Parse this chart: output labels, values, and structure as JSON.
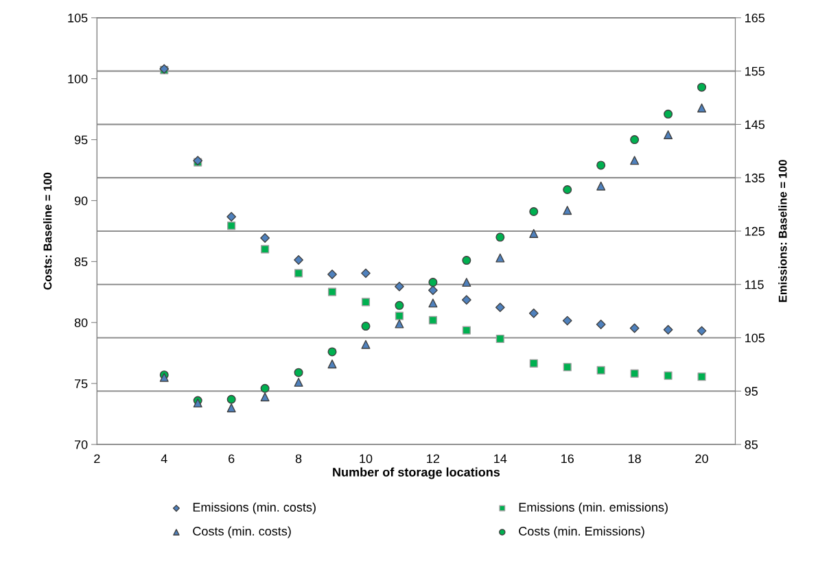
{
  "chart_data": {
    "type": "scatter",
    "xlabel": "Number of storage locations",
    "ylabel": "Costs: Baseline = 100",
    "y2label": "Emissions: Baseline = 100",
    "xlim": [
      2,
      21
    ],
    "xticks": [
      2,
      4,
      6,
      8,
      10,
      12,
      14,
      16,
      18,
      20
    ],
    "ylim": [
      70,
      105
    ],
    "yticks": [
      70,
      75,
      80,
      85,
      90,
      95,
      100,
      105
    ],
    "y2lim": [
      85,
      165
    ],
    "y2ticks": [
      85,
      95,
      105,
      115,
      125,
      135,
      145,
      155,
      165
    ],
    "grid": "y2",
    "legend": "bottom",
    "series": [
      {
        "name": "Emissions (min. costs)",
        "color": "#4f81bd",
        "marker": "diamond",
        "axis": "y2",
        "x": [
          4,
          5,
          6,
          7,
          8,
          9,
          10,
          11,
          12,
          13,
          14,
          15,
          16,
          17,
          18,
          19,
          20
        ],
        "values": [
          155.4,
          138.2,
          127.7,
          123.7,
          119.6,
          116.9,
          117.1,
          114.6,
          113.9,
          112.1,
          110.7,
          109.6,
          108.2,
          107.5,
          106.8,
          106.5,
          106.3
        ]
      },
      {
        "name": "Emissions (min. emissions)",
        "color": "#00b050",
        "marker": "square",
        "axis": "y2",
        "x": [
          4,
          5,
          6,
          7,
          8,
          9,
          10,
          11,
          12,
          13,
          14,
          15,
          16,
          17,
          18,
          19,
          20
        ],
        "values": [
          155.2,
          137.9,
          126.0,
          121.6,
          117.1,
          113.6,
          111.7,
          109.1,
          108.3,
          106.4,
          104.8,
          100.2,
          99.5,
          98.9,
          98.3,
          97.9,
          97.7
        ]
      },
      {
        "name": "Costs (min. costs)",
        "color": "#4f81bd",
        "marker": "triangle",
        "axis": "y",
        "x": [
          4,
          5,
          6,
          7,
          8,
          9,
          10,
          11,
          12,
          13,
          14,
          15,
          16,
          17,
          18,
          19,
          20
        ],
        "values": [
          75.5,
          73.4,
          73.0,
          73.9,
          75.1,
          76.6,
          78.2,
          79.9,
          81.6,
          83.3,
          85.3,
          87.3,
          89.2,
          91.2,
          93.3,
          95.4,
          97.6
        ]
      },
      {
        "name": "Costs (min. Emissions)",
        "color": "#00b050",
        "marker": "circle",
        "axis": "y",
        "x": [
          4,
          5,
          6,
          7,
          8,
          9,
          10,
          11,
          12,
          13,
          14,
          15,
          16,
          17,
          18,
          19,
          20
        ],
        "values": [
          75.7,
          73.6,
          73.7,
          74.6,
          75.9,
          77.6,
          79.7,
          81.4,
          83.3,
          85.1,
          87.0,
          89.1,
          90.9,
          92.9,
          95.0,
          97.1,
          99.3
        ]
      }
    ]
  }
}
